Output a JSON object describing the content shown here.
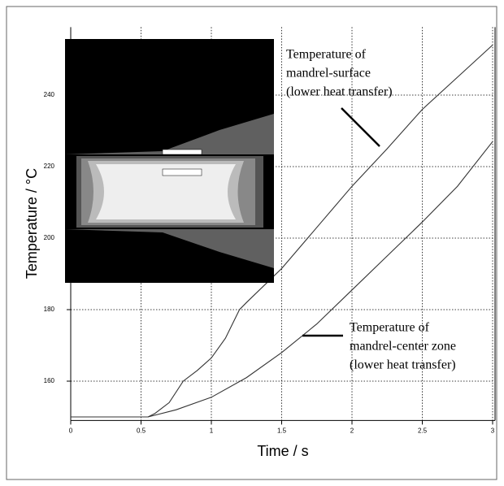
{
  "chart_data": {
    "type": "line",
    "xlabel": "Time / s",
    "ylabel": "Temperature / °C",
    "xlim": [
      0,
      3
    ],
    "ylim": [
      149,
      259
    ],
    "xticks": [
      0,
      0.5,
      1,
      1.5,
      2,
      2.5,
      3
    ],
    "yticks": [
      160,
      180,
      200,
      220,
      240
    ],
    "grid": true,
    "series": [
      {
        "color": "#333333",
        "x": [
          0,
          0.55,
          0.6,
          0.7,
          0.8,
          0.9,
          1.0,
          1.1,
          1.2,
          1.25,
          1.5,
          1.75,
          2.0,
          2.25,
          2.5,
          2.75,
          3.0
        ],
        "values": [
          150,
          150,
          151,
          154,
          160,
          163,
          166.5,
          172,
          180,
          182,
          191.5,
          203,
          214.5,
          225,
          236,
          245,
          254
        ]
      },
      {
        "color": "#333333",
        "x": [
          0,
          0.55,
          0.75,
          1.0,
          1.25,
          1.5,
          1.75,
          2.0,
          2.25,
          2.5,
          2.75,
          3.0
        ],
        "values": [
          150,
          150,
          152,
          155.5,
          161,
          168,
          176,
          185.5,
          195,
          204.5,
          214.5,
          227
        ]
      }
    ],
    "annotations": [
      {
        "lines": [
          "Temperature of",
          "mandrel-surface",
          "(lower heat transfer)"
        ]
      },
      {
        "lines": [
          "Temperature of",
          "mandrel-center zone",
          "(lower heat transfer)"
        ]
      }
    ]
  }
}
